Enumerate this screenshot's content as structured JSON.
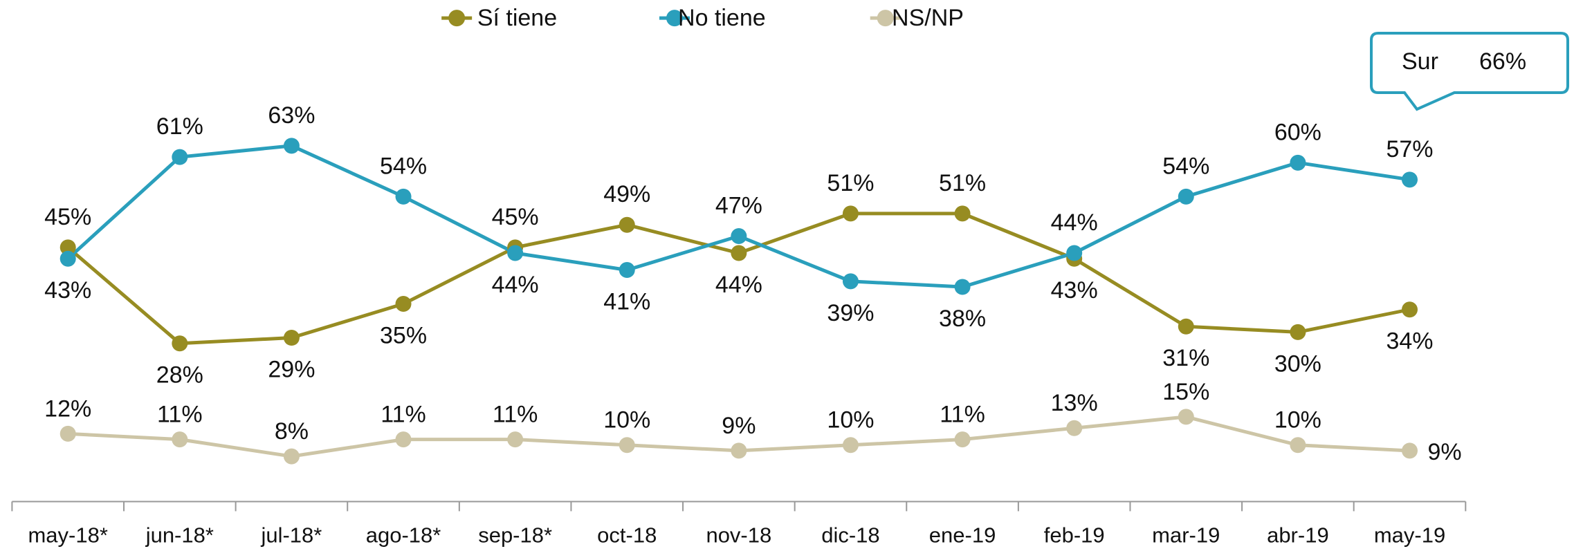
{
  "chart_data": {
    "type": "line",
    "categories": [
      "may-18*",
      "jun-18*",
      "jul-18*",
      "ago-18*",
      "sep-18*",
      "oct-18",
      "nov-18",
      "dic-18",
      "ene-19",
      "feb-19",
      "mar-19",
      "abr-19",
      "may-19"
    ],
    "series": [
      {
        "name": "Sí tiene",
        "color": "#978c22",
        "values": [
          45,
          28,
          29,
          35,
          45,
          49,
          44,
          51,
          51,
          43,
          31,
          30,
          34
        ],
        "value_labels": [
          "45%",
          "28%",
          "29%",
          "35%",
          "45%",
          "49%",
          "44%",
          "51%",
          "51%",
          "43%",
          "31%",
          "30%",
          "34%"
        ]
      },
      {
        "name": "No tiene",
        "color": "#2a9fbc",
        "values": [
          43,
          61,
          63,
          54,
          44,
          41,
          47,
          39,
          38,
          44,
          54,
          60,
          57
        ],
        "value_labels": [
          "43%",
          "61%",
          "63%",
          "54%",
          "44%",
          "41%",
          "47%",
          "39%",
          "38%",
          "44%",
          "54%",
          "60%",
          "57%"
        ]
      },
      {
        "name": "NS/NP",
        "color": "#cdc5a6",
        "values": [
          12,
          11,
          8,
          11,
          11,
          10,
          9,
          10,
          11,
          13,
          15,
          10,
          9
        ],
        "value_labels": [
          "12%",
          "11%",
          "8%",
          "11%",
          "11%",
          "10%",
          "9%",
          "10%",
          "11%",
          "13%",
          "15%",
          "10%",
          "9%"
        ]
      }
    ],
    "ylim": [
      0,
      90
    ],
    "legend": "top",
    "annotation": [
      "Sur",
      "66%"
    ]
  }
}
